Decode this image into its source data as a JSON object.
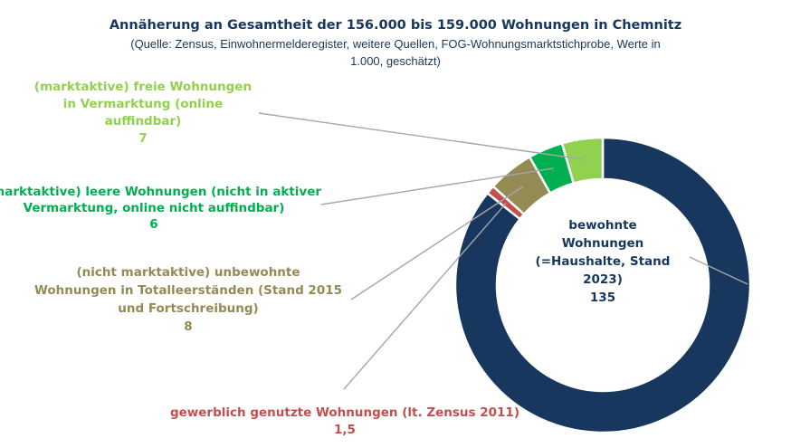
{
  "chart_data": {
    "type": "pie",
    "variant": "donut",
    "title": "Annäherung an Gesamtheit der 156.000 bis 159.000 Wohnungen in Chemnitz",
    "subtitle_lines": [
      "(Quelle: Zensus, Einwohnermelderegister, weitere Quellen, FOG-Wohnungsmarktstichprobe, Werte in",
      "1.000, geschätzt)"
    ],
    "slices": [
      {
        "key": "bewohnt",
        "value": 135,
        "value_label": "135",
        "color": "#17375e",
        "text_color": "#17375e",
        "label_lines": [
          "bewohnte",
          "Wohnungen",
          "(=Haushalte, Stand",
          "2023)"
        ]
      },
      {
        "key": "gewerblich",
        "value": 1.5,
        "value_label": "1,5",
        "color": "#c0504d",
        "text_color": "#c0504d",
        "label_lines": [
          "gewerblich genutzte Wohnungen (lt. Zensus 2011)"
        ]
      },
      {
        "key": "unbewohnt",
        "value": 8,
        "value_label": "8",
        "color": "#948a54",
        "text_color": "#948a54",
        "label_lines": [
          "(nicht marktaktive) unbewohnte",
          "Wohnungen in Totalleerständen (Stand 2015",
          "und Fortschreibung)"
        ]
      },
      {
        "key": "leer",
        "value": 6,
        "value_label": "6",
        "color": "#00b050",
        "text_color": "#00b050",
        "label_lines": [
          "(marktaktive) leere Wohnungen (nicht in aktiver",
          "Vermarktung, online nicht auffindbar)"
        ]
      },
      {
        "key": "frei",
        "value": 7,
        "value_label": "7",
        "color": "#92d050",
        "text_color": "#92d050",
        "label_lines": [
          "(marktaktive) freie Wohnungen",
          "in Vermarktung (online",
          "auffindbar)"
        ]
      }
    ]
  }
}
